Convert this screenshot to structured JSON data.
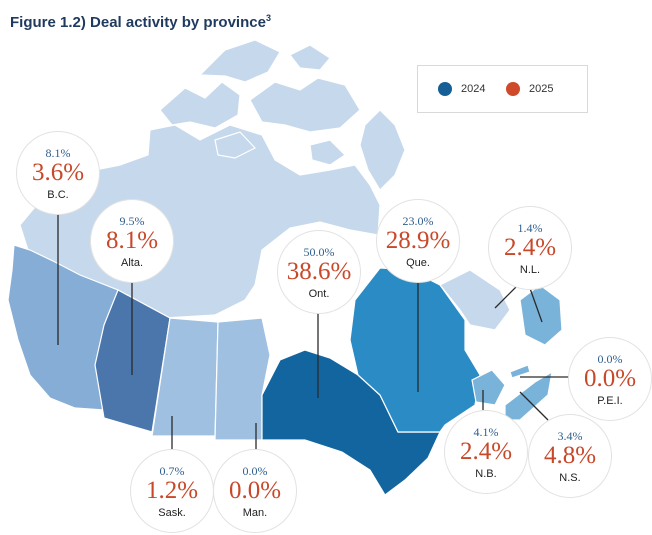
{
  "title": {
    "text": "Figure 1.2) Deal activity by province",
    "footnote": "3"
  },
  "legend": [
    {
      "label": "2024",
      "color": "#155f96"
    },
    {
      "label": "2025",
      "color": "#cf4a2a"
    }
  ],
  "colors": {
    "territories": "#c5d8ec",
    "bc": "#86add6",
    "alberta": "#4a76ab",
    "saskatchewan": "#9fc0e0",
    "manitoba": "#9fc0e0",
    "ontario": "#12659f",
    "quebec": "#2a8bc5",
    "atlantic": "#7ab3da",
    "leader": "#2b2b2b"
  },
  "provinces": [
    {
      "id": "bc",
      "name": "B.C.",
      "v2024": "8.1%",
      "v2025": "3.6%"
    },
    {
      "id": "ab",
      "name": "Alta.",
      "v2024": "9.5%",
      "v2025": "8.1%"
    },
    {
      "id": "on",
      "name": "Ont.",
      "v2024": "50.0%",
      "v2025": "38.6%"
    },
    {
      "id": "qc",
      "name": "Que.",
      "v2024": "23.0%",
      "v2025": "28.9%"
    },
    {
      "id": "nl",
      "name": "N.L.",
      "v2024": "1.4%",
      "v2025": "2.4%"
    },
    {
      "id": "pei",
      "name": "P.E.I.",
      "v2024": "0.0%",
      "v2025": "0.0%"
    },
    {
      "id": "sk",
      "name": "Sask.",
      "v2024": "0.7%",
      "v2025": "1.2%"
    },
    {
      "id": "mb",
      "name": "Man.",
      "v2024": "0.0%",
      "v2025": "0.0%"
    },
    {
      "id": "nb",
      "name": "N.B.",
      "v2024": "4.1%",
      "v2025": "2.4%"
    },
    {
      "id": "ns",
      "name": "N.S.",
      "v2024": "3.4%",
      "v2025": "4.8%"
    }
  ]
}
